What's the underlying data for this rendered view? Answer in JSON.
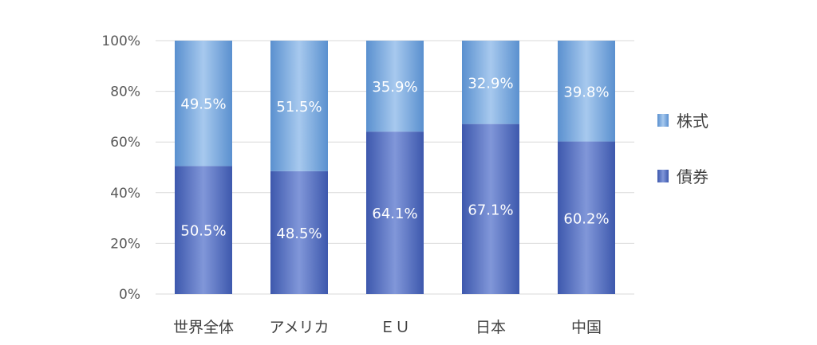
{
  "chart_data": {
    "type": "bar",
    "stacked": true,
    "categories": [
      "世界全体",
      "アメリカ",
      "ＥＵ",
      "日本",
      "中国"
    ],
    "series": [
      {
        "name": "債券",
        "values": [
          50.5,
          48.5,
          64.1,
          67.1,
          60.2
        ],
        "labels": [
          "50.5%",
          "48.5%",
          "64.1%",
          "67.1%",
          "60.2%"
        ],
        "color": "#4a6bc2"
      },
      {
        "name": "株式",
        "values": [
          49.5,
          51.5,
          35.9,
          32.9,
          39.8
        ],
        "labels": [
          "49.5%",
          "51.5%",
          "35.9%",
          "32.9%",
          "39.8%"
        ],
        "color": "#6a9fd8"
      }
    ],
    "y_ticks": [
      "0%",
      "20%",
      "40%",
      "60%",
      "80%",
      "100%"
    ],
    "ylim": [
      0,
      100
    ],
    "grid": true,
    "legend_position": "right"
  }
}
